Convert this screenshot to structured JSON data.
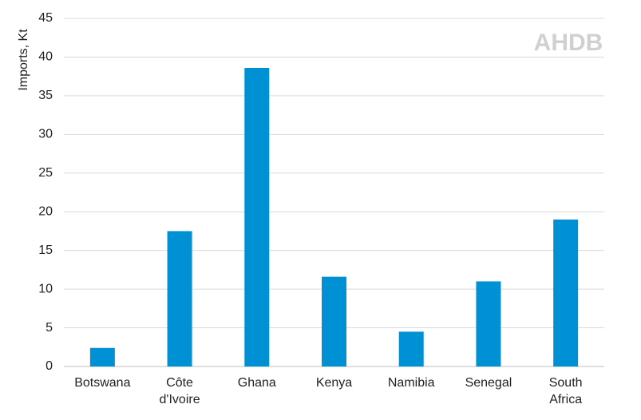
{
  "chart_data": {
    "type": "bar",
    "y_label": "Imports, Kt",
    "watermark": "AHDB",
    "categories": [
      "Botswana",
      "Côte d'Ivoire",
      "Ghana",
      "Kenya",
      "Namibia",
      "Senegal",
      "South Africa"
    ],
    "values": [
      2.4,
      17.5,
      38.6,
      11.6,
      4.5,
      11,
      19
    ],
    "color": "#0090d4",
    "ylim": [
      0,
      45
    ],
    "yticks": [
      0,
      5,
      10,
      15,
      20,
      25,
      30,
      35,
      40,
      45
    ],
    "grid": true
  }
}
